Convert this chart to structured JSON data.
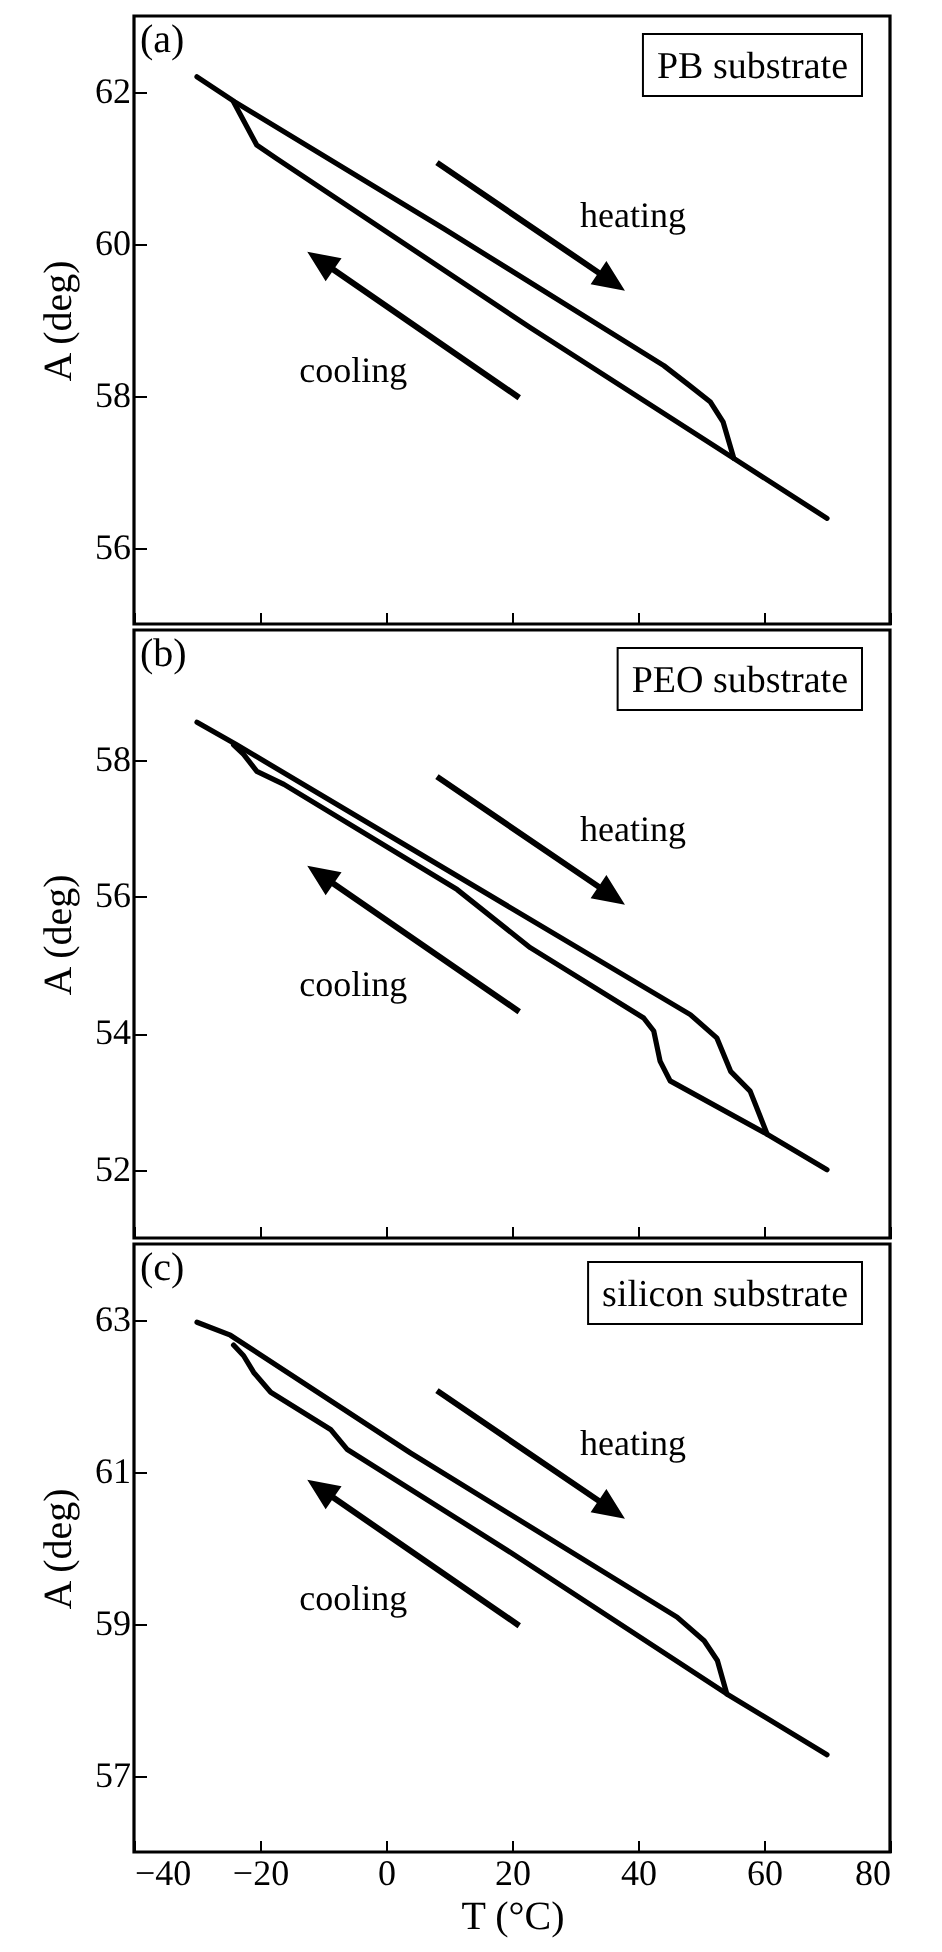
{
  "chart_data": [
    {
      "type": "line",
      "title": "(a)",
      "subtitle": "PB substrate",
      "ylabel": "A (deg)",
      "xlim": [
        -40,
        80
      ],
      "xticks": [
        -40,
        -20,
        0,
        20,
        40,
        60,
        80
      ],
      "ylim": [
        55,
        63
      ],
      "yticks": [
        56,
        58,
        60,
        62
      ],
      "tick_labels": "y",
      "marker": "none",
      "line_style": "solid",
      "annotations": [
        "heating",
        "cooling"
      ],
      "series": [
        {
          "color": "#000000",
          "x": [
            -30,
            -24,
            9.2,
            44.1,
            48,
            51.5,
            53.5,
            55.2,
            70
          ],
          "values": [
            62.2,
            61.87,
            60.2,
            58.4,
            58.15,
            57.92,
            57.66,
            57.18,
            56.39
          ]
        },
        {
          "color": "#000000",
          "x": [
            55.2,
            22.9,
            -17.3,
            -20.5,
            -23.1,
            -24.2
          ],
          "values": [
            57.18,
            58.9,
            61.12,
            61.3,
            61.7,
            61.87
          ]
        }
      ]
    },
    {
      "type": "line",
      "title": "(b)",
      "subtitle": "PEO substrate",
      "ylabel": "A (deg)",
      "xlim": [
        -40,
        80
      ],
      "xticks": [
        -40,
        -20,
        0,
        20,
        40,
        60,
        80
      ],
      "ylim": [
        51,
        59.9
      ],
      "yticks": [
        52,
        54,
        56,
        58
      ],
      "tick_labels": "y",
      "marker": "none",
      "line_style": "solid",
      "annotations": [
        "heating",
        "cooling"
      ],
      "series": [
        {
          "color": "#000000",
          "x": [
            -30,
            -23.7,
            48.3,
            52.5,
            54.7,
            57.8,
            60.5,
            70
          ],
          "values": [
            58.55,
            58.22,
            54.27,
            53.93,
            53.44,
            53.15,
            52.52,
            52.0
          ]
        },
        {
          "color": "#000000",
          "x": [
            60.5,
            45.1,
            43.5,
            42.5,
            40.9,
            22.9,
            11.3,
            -16.2,
            -20.5,
            -22.6,
            -24.2
          ],
          "values": [
            52.52,
            53.3,
            53.59,
            54.03,
            54.22,
            55.25,
            56.1,
            57.64,
            57.83,
            58.08,
            58.22
          ]
        }
      ]
    },
    {
      "type": "line",
      "title": "(c)",
      "subtitle": "silicon substrate",
      "xlabel": "T (°C)",
      "ylabel": "A (deg)",
      "xlim": [
        -40,
        80
      ],
      "xticks": [
        -40,
        -20,
        0,
        20,
        40,
        60,
        80
      ],
      "ylim": [
        56,
        64
      ],
      "yticks": [
        57,
        59,
        61,
        63
      ],
      "marker": "none",
      "line_style": "solid",
      "annotations": [
        "heating",
        "cooling"
      ],
      "series": [
        {
          "color": "#000000",
          "x": [
            -30,
            -24.7,
            3.9,
            46.2,
            50.5,
            52.6,
            54.1,
            70
          ],
          "values": [
            62.97,
            62.8,
            61.25,
            59.09,
            58.78,
            58.52,
            58.08,
            57.28
          ]
        },
        {
          "color": "#000000",
          "x": [
            54.1,
            20,
            -6.2,
            -8.8,
            -18.3,
            -21,
            -22.6,
            -24.2
          ],
          "values": [
            58.08,
            59.93,
            61.3,
            61.56,
            62.05,
            62.31,
            62.53,
            62.67
          ]
        }
      ]
    }
  ]
}
